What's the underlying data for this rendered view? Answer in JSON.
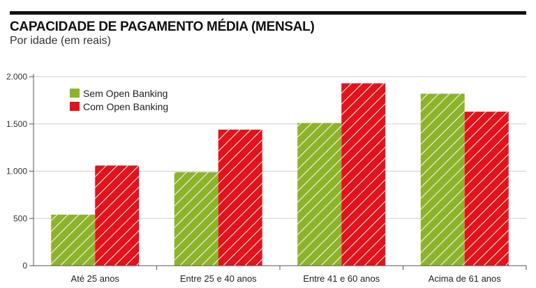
{
  "header": {
    "title": "CAPACIDADE DE PAGAMENTO MÉDIA (MENSAL)",
    "subtitle": "Por idade (em reais)"
  },
  "chart_data": {
    "type": "bar",
    "title": "CAPACIDADE DE PAGAMENTO MÉDIA (MENSAL)",
    "subtitle": "Por idade (em reais)",
    "xlabel": "",
    "ylabel": "",
    "categories": [
      "Até 25 anos",
      "Entre 25 e 40 anos",
      "Entre 41 e 60 anos",
      "Acima de 61 anos"
    ],
    "series": [
      {
        "name": "Sem Open Banking",
        "color": "#8db32b",
        "values": [
          540,
          990,
          1510,
          1820
        ]
      },
      {
        "name": "Com Open Banking",
        "color": "#e3121b",
        "values": [
          1060,
          1440,
          1930,
          1630
        ]
      }
    ],
    "ylim": [
      0,
      2000
    ],
    "yticks": [
      0,
      500,
      1000,
      1500,
      2000
    ],
    "ytick_labels": [
      "0",
      "500",
      "1.000",
      "1.500",
      "2.000"
    ],
    "grid": true,
    "legend_position": "top-left",
    "pattern": "diagonal-hatch"
  }
}
